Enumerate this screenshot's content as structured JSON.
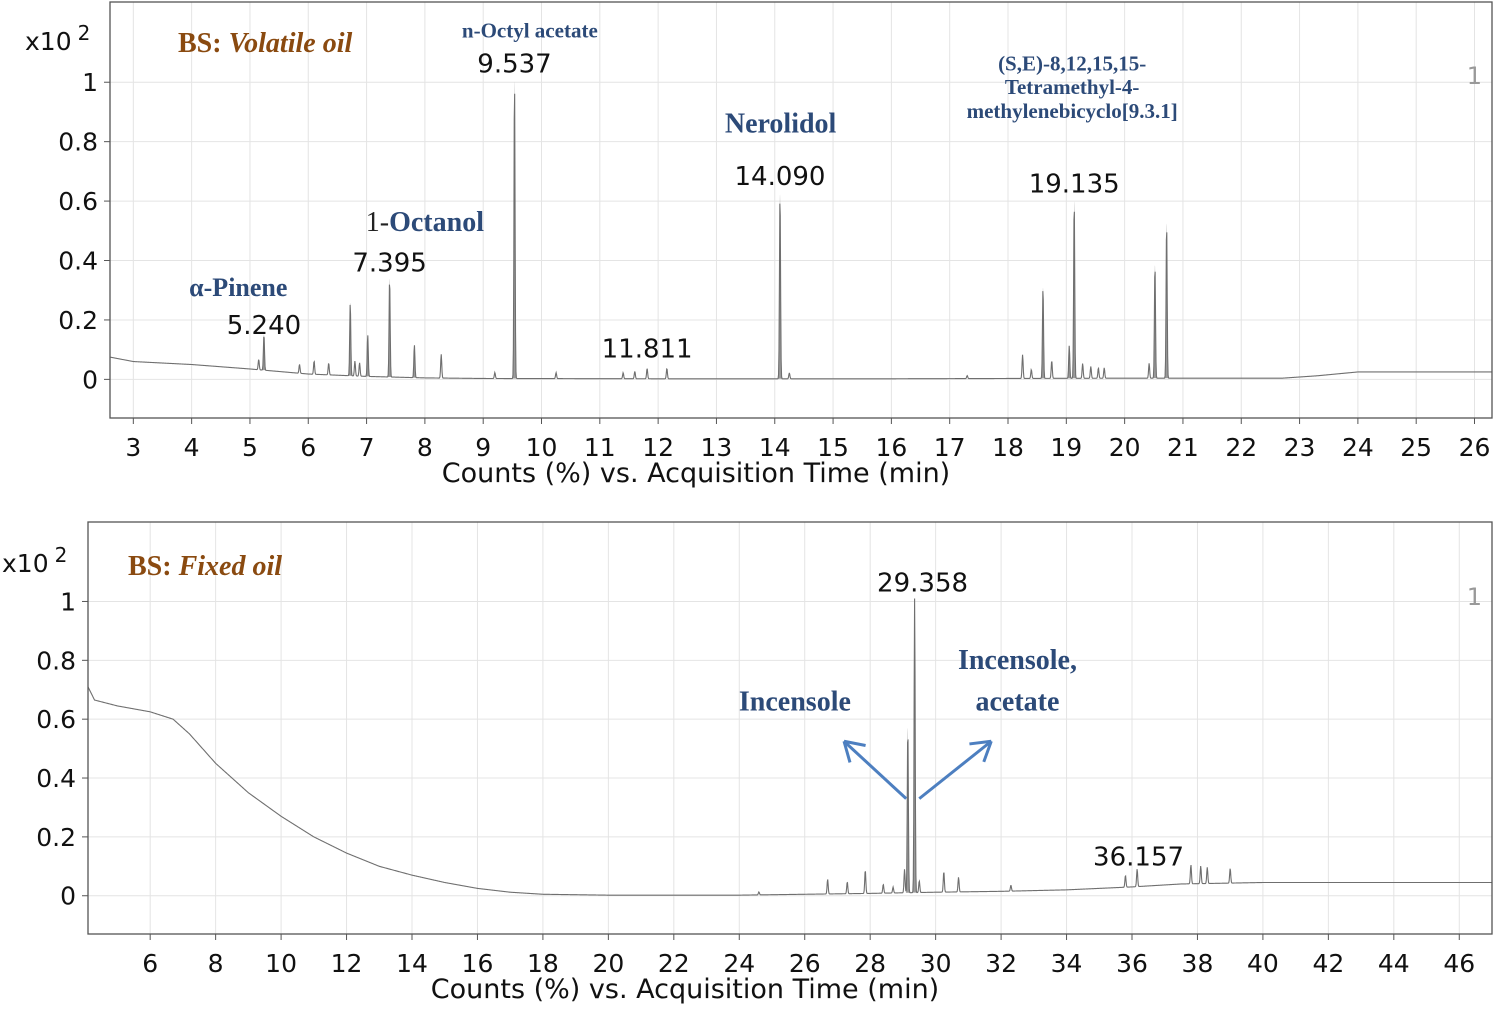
{
  "chart_data": [
    {
      "type": "line",
      "title_prefix": "BS: ",
      "title_italic": "Volatile oil",
      "multiplier": "x10",
      "multiplier_exp": "2",
      "panel_number": "1",
      "xlabel": "Counts (%) vs. Acquisition Time (min)",
      "ylabel": "",
      "xlim": [
        2.6,
        26.3
      ],
      "ylim": [
        -0.13,
        1.27
      ],
      "xticks": [
        3,
        4,
        5,
        6,
        7,
        8,
        9,
        10,
        11,
        12,
        13,
        14,
        15,
        16,
        17,
        18,
        19,
        20,
        21,
        22,
        23,
        24,
        25,
        26
      ],
      "yticks": [
        0,
        0.2,
        0.4,
        0.6,
        0.8,
        1
      ],
      "ytick_labels": [
        "0",
        "0.2",
        "0.4",
        "0.6",
        "0.8",
        "1"
      ],
      "grid": true,
      "baseline": [
        [
          2.6,
          0.075
        ],
        [
          3,
          0.06
        ],
        [
          4,
          0.05
        ],
        [
          5,
          0.035
        ],
        [
          6,
          0.018
        ],
        [
          7,
          0.01
        ],
        [
          8,
          0.005
        ],
        [
          9,
          0.003
        ],
        [
          12,
          0.002
        ],
        [
          16,
          0.002
        ],
        [
          18,
          0.003
        ],
        [
          20,
          0.004
        ],
        [
          22,
          0.004
        ],
        [
          22.7,
          0.004
        ],
        [
          23.3,
          0.012
        ],
        [
          24,
          0.025
        ],
        [
          26.3,
          0.025
        ]
      ],
      "peaks": [
        {
          "rt": 5.24,
          "h": 0.12
        },
        {
          "rt": 5.15,
          "h": 0.035
        },
        {
          "rt": 5.85,
          "h": 0.03
        },
        {
          "rt": 6.1,
          "h": 0.045
        },
        {
          "rt": 6.35,
          "h": 0.04
        },
        {
          "rt": 6.72,
          "h": 0.245
        },
        {
          "rt": 6.8,
          "h": 0.05
        },
        {
          "rt": 6.88,
          "h": 0.045
        },
        {
          "rt": 7.02,
          "h": 0.14
        },
        {
          "rt": 7.395,
          "h": 0.33
        },
        {
          "rt": 7.82,
          "h": 0.11
        },
        {
          "rt": 8.28,
          "h": 0.08
        },
        {
          "rt": 9.2,
          "h": 0.02
        },
        {
          "rt": 9.537,
          "h": 1.0
        },
        {
          "rt": 10.25,
          "h": 0.02
        },
        {
          "rt": 11.4,
          "h": 0.02
        },
        {
          "rt": 11.6,
          "h": 0.025
        },
        {
          "rt": 11.811,
          "h": 0.035
        },
        {
          "rt": 12.15,
          "h": 0.035
        },
        {
          "rt": 14.09,
          "h": 0.62
        },
        {
          "rt": 14.25,
          "h": 0.02
        },
        {
          "rt": 17.3,
          "h": 0.01
        },
        {
          "rt": 18.25,
          "h": 0.08
        },
        {
          "rt": 18.4,
          "h": 0.03
        },
        {
          "rt": 18.6,
          "h": 0.305
        },
        {
          "rt": 18.75,
          "h": 0.06
        },
        {
          "rt": 19.05,
          "h": 0.11
        },
        {
          "rt": 19.135,
          "h": 0.595
        },
        {
          "rt": 19.28,
          "h": 0.05
        },
        {
          "rt": 19.42,
          "h": 0.04
        },
        {
          "rt": 19.55,
          "h": 0.035
        },
        {
          "rt": 19.65,
          "h": 0.035
        },
        {
          "rt": 20.42,
          "h": 0.05
        },
        {
          "rt": 20.52,
          "h": 0.38
        },
        {
          "rt": 20.72,
          "h": 0.52
        }
      ],
      "rt_labels": [
        {
          "text": "5.240",
          "x": 5.24,
          "y": 0.14
        },
        {
          "text": "7.395",
          "x": 7.395,
          "y": 0.35
        },
        {
          "text": "9.537",
          "x": 9.537,
          "y": 1.02
        },
        {
          "text": "11.811",
          "x": 11.811,
          "y": 0.06
        },
        {
          "text": "14.090",
          "x": 14.09,
          "y": 0.64
        },
        {
          "text": "19.135",
          "x": 19.135,
          "y": 0.615
        }
      ],
      "compound_labels": [
        {
          "text": "α-Pinene",
          "x": 4.8,
          "y": 0.28,
          "size": 26
        },
        {
          "text": "1-Octanol",
          "x": 8.0,
          "y": 0.5,
          "size": 28
        },
        {
          "text": "n-Octyl acetate",
          "x": 9.8,
          "y": 1.15,
          "size": 21
        },
        {
          "text": "Nerolidol",
          "x": 14.1,
          "y": 0.83,
          "size": 28
        },
        {
          "text": "(S,E)-8,12,15,15-",
          "x": 19.1,
          "y": 1.04,
          "size": 21
        },
        {
          "text": "Tetramethyl-4-",
          "x": 19.1,
          "y": 0.96,
          "size": 21
        },
        {
          "text": "methylenebicyclo[9.3.1]",
          "x": 19.1,
          "y": 0.88,
          "size": 21
        }
      ],
      "arrows": []
    },
    {
      "type": "line",
      "title_prefix": "BS: ",
      "title_italic": "Fixed oil",
      "multiplier": "x10",
      "multiplier_exp": "2",
      "panel_number": "1",
      "xlabel": "Counts (%) vs. Acquisition Time (min)",
      "ylabel": "",
      "xlim": [
        4.1,
        47.0
      ],
      "ylim": [
        -0.13,
        1.27
      ],
      "xticks": [
        6,
        8,
        10,
        12,
        14,
        16,
        18,
        20,
        22,
        24,
        26,
        28,
        30,
        32,
        34,
        36,
        38,
        40,
        42,
        44,
        46
      ],
      "yticks": [
        0,
        0.2,
        0.4,
        0.6,
        0.8,
        1
      ],
      "ytick_labels": [
        "0",
        "0.2",
        "0.4",
        "0.6",
        "0.8",
        "1"
      ],
      "grid": true,
      "baseline": [
        [
          4.1,
          0.71
        ],
        [
          4.3,
          0.665
        ],
        [
          5,
          0.645
        ],
        [
          6,
          0.625
        ],
        [
          6.7,
          0.6
        ],
        [
          7.2,
          0.55
        ],
        [
          8,
          0.45
        ],
        [
          9,
          0.35
        ],
        [
          10,
          0.27
        ],
        [
          11,
          0.2
        ],
        [
          12,
          0.145
        ],
        [
          13,
          0.1
        ],
        [
          14,
          0.07
        ],
        [
          15,
          0.045
        ],
        [
          16,
          0.025
        ],
        [
          17,
          0.012
        ],
        [
          18,
          0.005
        ],
        [
          20,
          0.002
        ],
        [
          24,
          0.002
        ],
        [
          28,
          0.008
        ],
        [
          30,
          0.012
        ],
        [
          32,
          0.015
        ],
        [
          34,
          0.02
        ],
        [
          36,
          0.03
        ],
        [
          37.5,
          0.04
        ],
        [
          40,
          0.045
        ],
        [
          47,
          0.045
        ]
      ],
      "peaks": [
        {
          "rt": 24.6,
          "h": 0.01
        },
        {
          "rt": 26.7,
          "h": 0.05
        },
        {
          "rt": 27.3,
          "h": 0.04
        },
        {
          "rt": 27.85,
          "h": 0.08
        },
        {
          "rt": 28.4,
          "h": 0.03
        },
        {
          "rt": 28.7,
          "h": 0.02
        },
        {
          "rt": 29.05,
          "h": 0.08
        },
        {
          "rt": 29.15,
          "h": 0.56
        },
        {
          "rt": 29.358,
          "h": 1.0
        },
        {
          "rt": 29.5,
          "h": 0.04
        },
        {
          "rt": 30.25,
          "h": 0.07
        },
        {
          "rt": 30.7,
          "h": 0.05
        },
        {
          "rt": 32.3,
          "h": 0.02
        },
        {
          "rt": 35.8,
          "h": 0.04
        },
        {
          "rt": 36.157,
          "h": 0.06
        },
        {
          "rt": 37.8,
          "h": 0.065
        },
        {
          "rt": 38.1,
          "h": 0.06
        },
        {
          "rt": 38.3,
          "h": 0.055
        },
        {
          "rt": 39.0,
          "h": 0.05
        }
      ],
      "rt_labels": [
        {
          "text": "29.358",
          "x": 29.6,
          "y": 1.02
        },
        {
          "text": "36.157",
          "x": 36.2,
          "y": 0.09
        }
      ],
      "compound_labels": [
        {
          "text": "Incensole",
          "x": 25.7,
          "y": 0.63,
          "size": 28
        },
        {
          "text": "Incensole,",
          "x": 32.5,
          "y": 0.77,
          "size": 28
        },
        {
          "text": "acetate",
          "x": 32.5,
          "y": 0.63,
          "size": 28
        }
      ],
      "arrows": [
        {
          "from": [
            29.1,
            0.33
          ],
          "to": [
            27.2,
            0.525
          ]
        },
        {
          "from": [
            29.5,
            0.33
          ],
          "to": [
            31.7,
            0.525
          ]
        }
      ]
    }
  ],
  "colors": {
    "trace": "#6f6f6f",
    "peak_fill": "#9a9a9a",
    "title": "#8a4a10",
    "compound": "#2c4a78",
    "arrow": "#4d7fc0",
    "grid": "#e4e4e4",
    "frame": "#555555",
    "panel_number": "#999999"
  }
}
